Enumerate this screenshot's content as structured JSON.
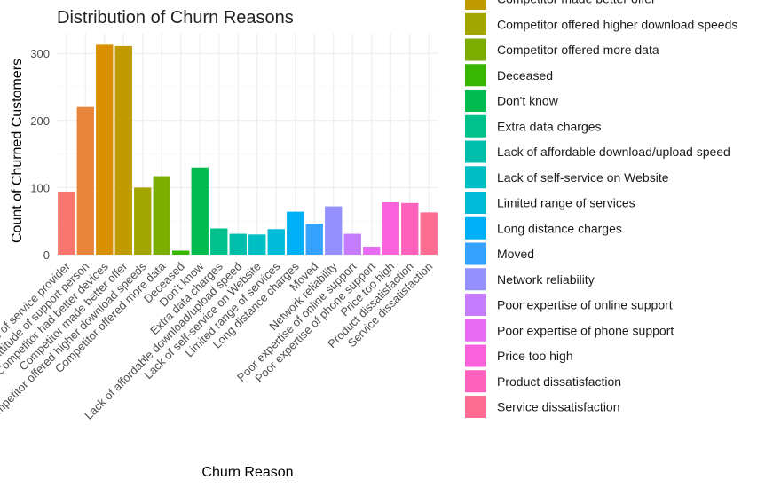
{
  "chart_data": {
    "type": "bar",
    "title": "Distribution of Churn Reasons",
    "xlabel": "Churn Reason",
    "ylabel": "Count of Churned Customers",
    "ylim": [
      0,
      330
    ],
    "yticks": [
      0,
      100,
      200,
      300
    ],
    "grid": true,
    "legend_position": "right",
    "categories": [
      "Attitude of service provider",
      "Attitude of support person",
      "Competitor had better devices",
      "Competitor made better offer",
      "Competitor offered higher download speeds",
      "Competitor offered more data",
      "Deceased",
      "Don't know",
      "Extra data charges",
      "Lack of affordable download/upload speed",
      "Lack of self-service on Website",
      "Limited range of services",
      "Long distance charges",
      "Moved",
      "Network reliability",
      "Poor expertise of online support",
      "Poor expertise of phone support",
      "Price too high",
      "Product dissatisfaction",
      "Service dissatisfaction"
    ],
    "values": [
      94,
      220,
      313,
      311,
      100,
      117,
      6,
      130,
      39,
      31,
      30,
      38,
      64,
      46,
      72,
      31,
      12,
      78,
      77,
      63
    ],
    "colors": [
      "#F8766D",
      "#E8853A",
      "#D89000",
      "#C09B00",
      "#A3A500",
      "#7CAE00",
      "#39B600",
      "#00BB4E",
      "#00C08B",
      "#00BFAA",
      "#00BFC4",
      "#00BCD8",
      "#00B0F6",
      "#35A2FF",
      "#9590FF",
      "#C77CFF",
      "#E76BF3",
      "#FA62DB",
      "#FF62BC",
      "#FF6C91"
    ],
    "legend": {
      "visible_entries": [
        "Competitor made better offer",
        "Competitor offered higher download speeds",
        "Competitor offered more data",
        "Deceased",
        "Don't know",
        "Extra data charges",
        "Lack of affordable download/upload speed",
        "Lack of self-service on Website",
        "Limited range of services",
        "Long distance charges",
        "Moved",
        "Network reliability",
        "Poor expertise of online support",
        "Poor expertise of phone support",
        "Price too high",
        "Product dissatisfaction",
        "Service dissatisfaction"
      ],
      "visible_colors": [
        "#C09B00",
        "#A3A500",
        "#7CAE00",
        "#39B600",
        "#00BB4E",
        "#00C08B",
        "#00BFAA",
        "#00BFC4",
        "#00BCD8",
        "#00B0F6",
        "#35A2FF",
        "#9590FF",
        "#C77CFF",
        "#E76BF3",
        "#FA62DB",
        "#FF62BC",
        "#FF6C91"
      ]
    }
  }
}
